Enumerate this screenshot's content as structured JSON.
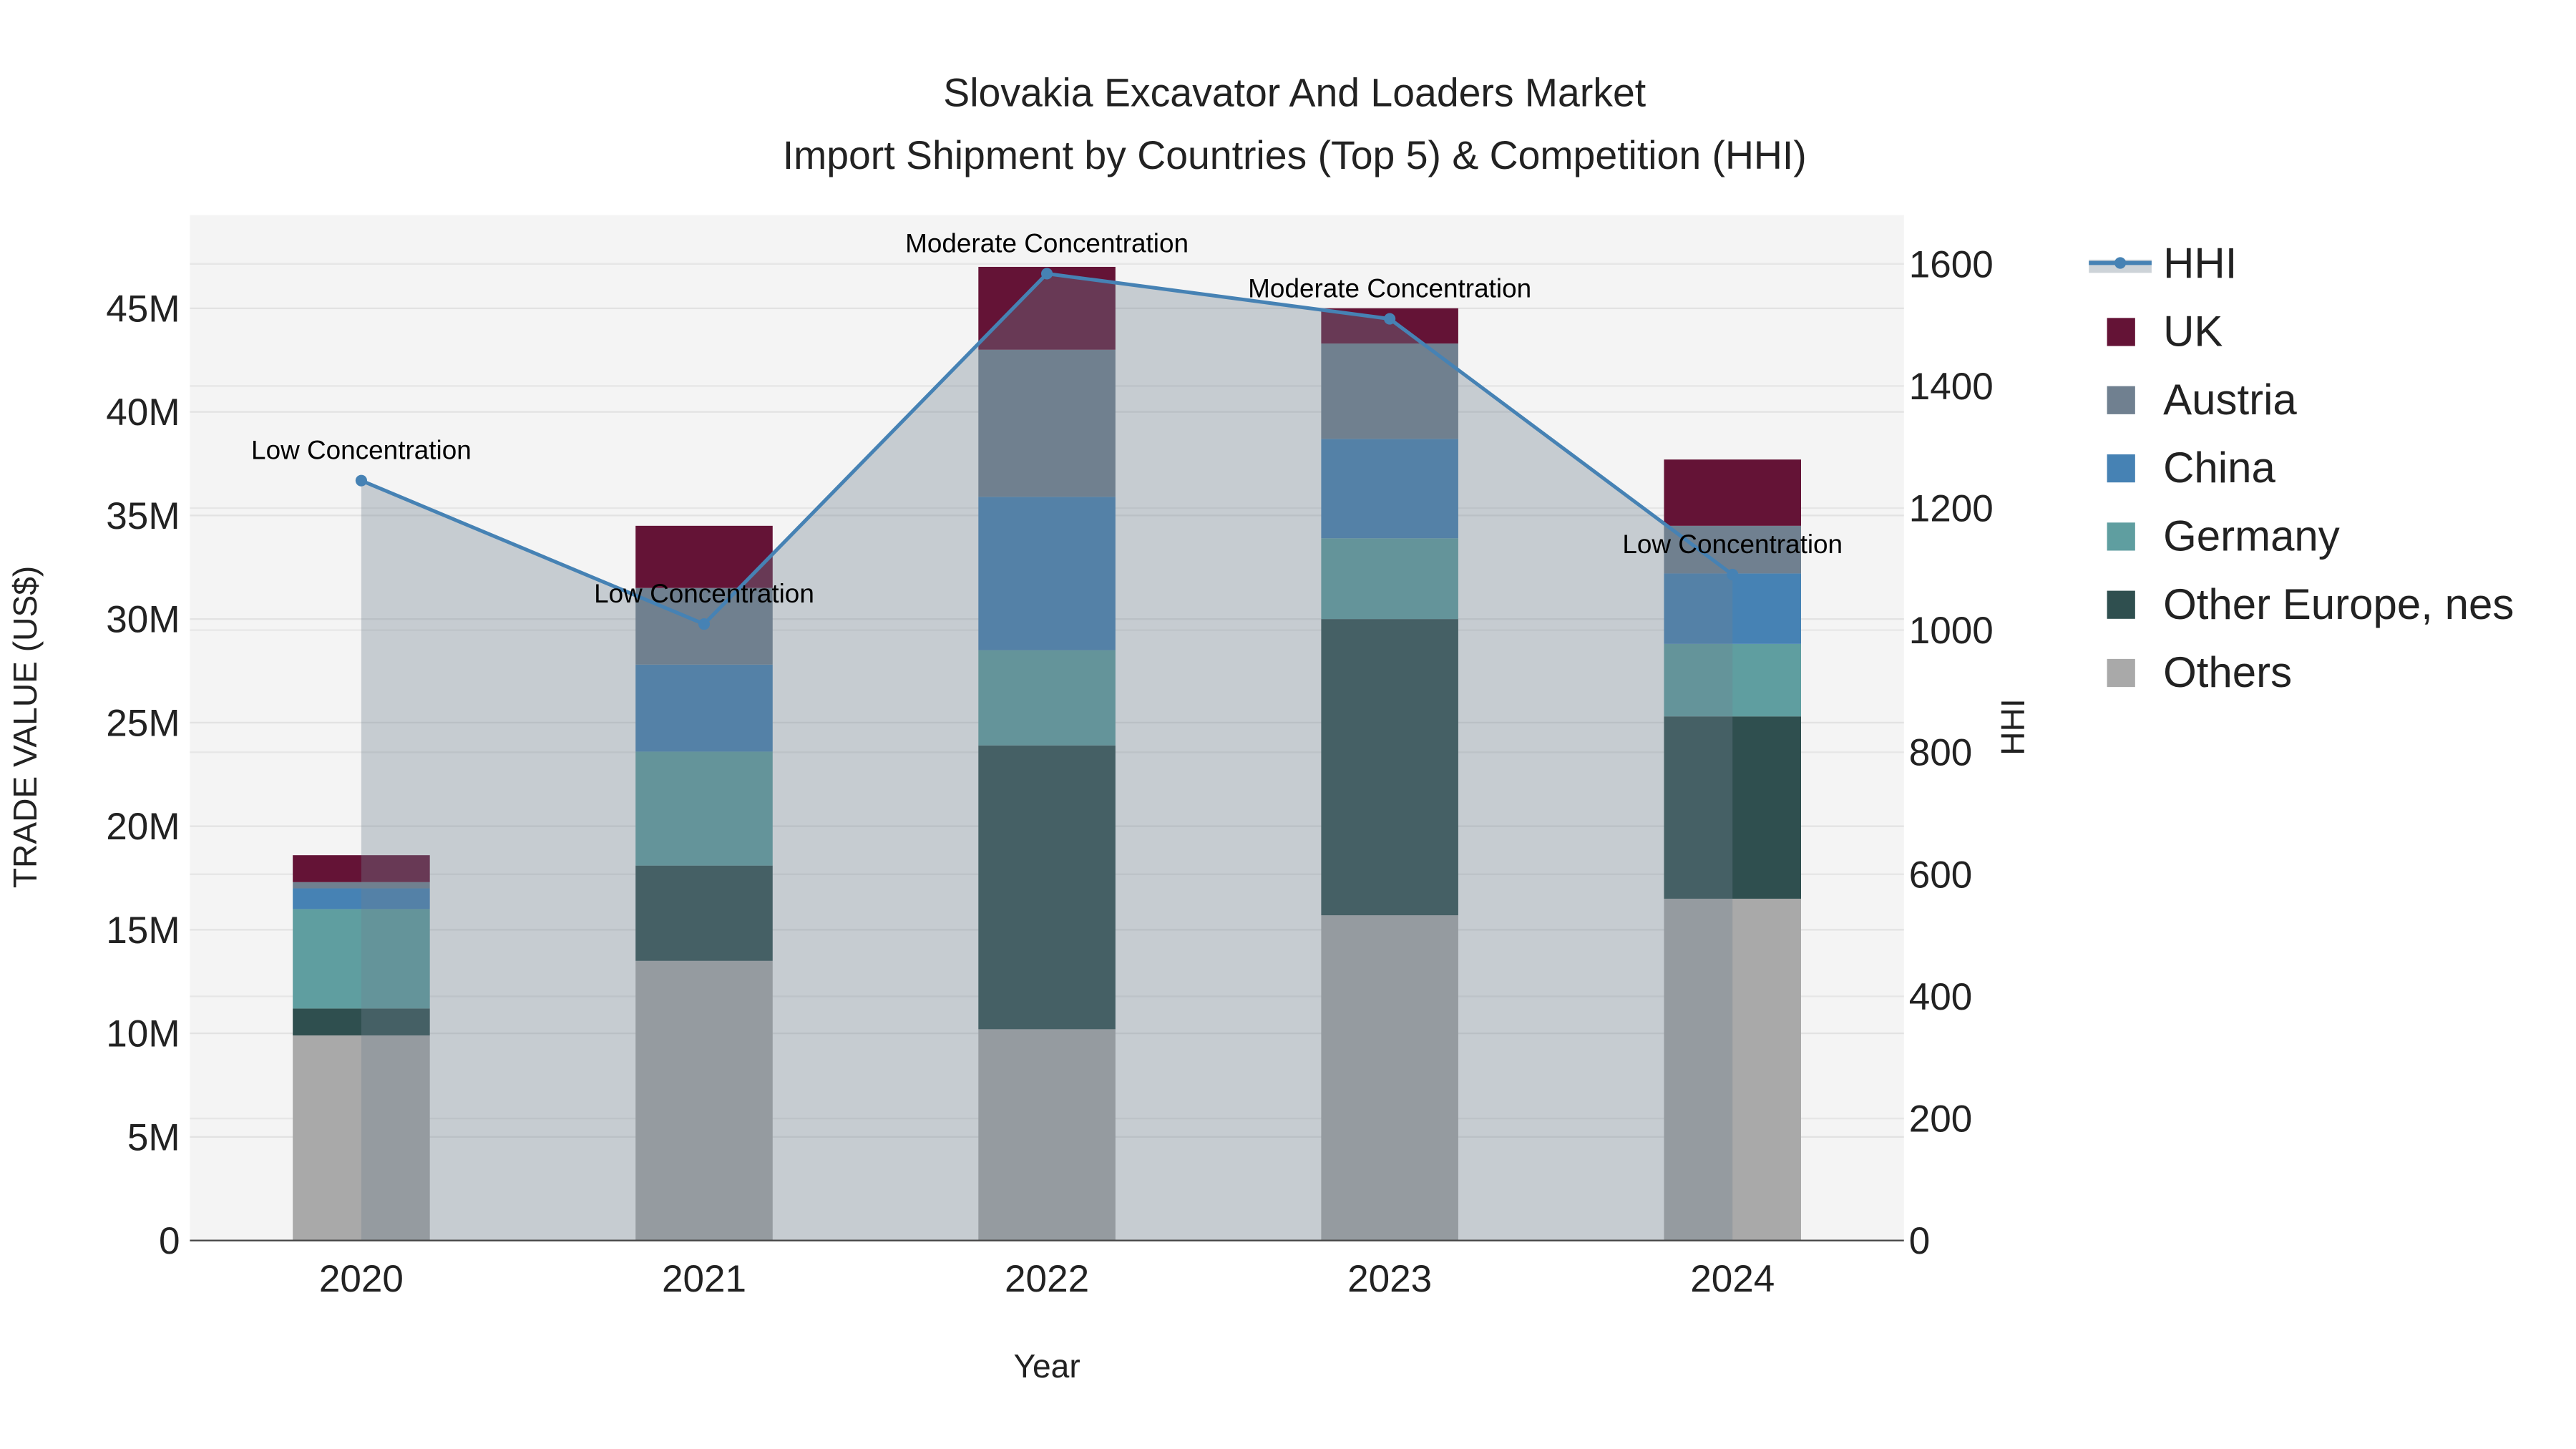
{
  "chart_data": {
    "type": "bar",
    "title": "Slovakia Excavator And Loaders Market",
    "subtitle": "Import Shipment by Countries (Top 5) & Competition (HHI)",
    "xlabel": "Year",
    "ylabel": "TRADE VALUE (US$)",
    "y2label": "HHI",
    "categories": [
      "2020",
      "2021",
      "2022",
      "2023",
      "2024"
    ],
    "ylim": [
      0,
      49500000
    ],
    "y2lim": [
      0,
      1680
    ],
    "yticks": [
      0,
      5000000,
      10000000,
      15000000,
      20000000,
      25000000,
      30000000,
      35000000,
      40000000,
      45000000
    ],
    "ytick_labels": [
      "0",
      "5M",
      "10M",
      "15M",
      "20M",
      "25M",
      "30M",
      "35M",
      "40M",
      "45M"
    ],
    "y2ticks": [
      0,
      200,
      400,
      600,
      800,
      1000,
      1200,
      1400,
      1600
    ],
    "y2tick_labels": [
      "0",
      "200",
      "400",
      "600",
      "800",
      "1000",
      "1200",
      "1400",
      "1600"
    ],
    "grid": true,
    "legend_position": "right",
    "series": [
      {
        "name": "Others",
        "color": "#a9a9a9",
        "values": [
          9900000,
          13500000,
          10200000,
          15700000,
          16500000
        ]
      },
      {
        "name": "Other Europe, nes",
        "color": "#2f4f4f",
        "values": [
          1300000,
          4600000,
          13700000,
          14300000,
          8800000
        ]
      },
      {
        "name": "Germany",
        "color": "#5f9ea0",
        "values": [
          4800000,
          5500000,
          4600000,
          3900000,
          3500000
        ]
      },
      {
        "name": "China",
        "color": "#4682b4",
        "values": [
          1000000,
          4200000,
          7400000,
          4800000,
          3400000
        ]
      },
      {
        "name": "Austria",
        "color": "#708090",
        "values": [
          300000,
          3700000,
          7100000,
          4600000,
          2300000
        ]
      },
      {
        "name": "UK",
        "color": "#641336",
        "values": [
          1300000,
          3000000,
          4000000,
          1700000,
          3200000
        ]
      }
    ],
    "hhi": {
      "name": "HHI",
      "color": "#4682b4",
      "values": [
        1245,
        1010,
        1584,
        1510,
        1091
      ],
      "annotations": [
        "Low Concentration",
        "Low Concentration",
        "Moderate Concentration",
        "Moderate Concentration",
        "Low Concentration"
      ]
    },
    "legend_order": [
      "HHI",
      "UK",
      "Austria",
      "China",
      "Germany",
      "Other Europe, nes",
      "Others"
    ]
  }
}
